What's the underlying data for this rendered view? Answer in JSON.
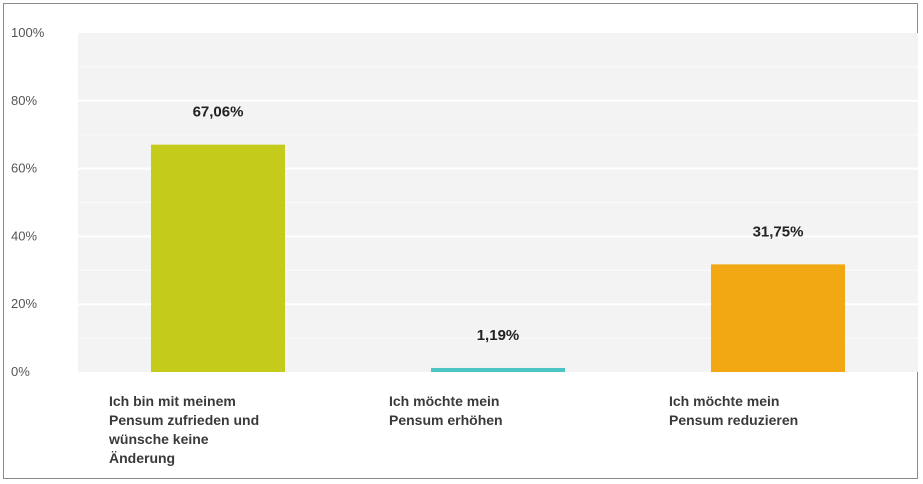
{
  "chart_data": {
    "type": "bar",
    "categories": [
      [
        "Ich bin mit meinem",
        "Pensum zufrieden und",
        "wünsche keine",
        "Änderung"
      ],
      [
        "Ich möchte mein",
        "Pensum erhöhen"
      ],
      [
        "Ich möchte mein",
        "Pensum reduzieren"
      ]
    ],
    "values": [
      67.06,
      1.19,
      31.75
    ],
    "data_labels": [
      "67,06%",
      "1,19%",
      "31,75%"
    ],
    "colors": [
      "#c5cb1b",
      "#4cc4c4",
      "#f2a813"
    ],
    "yticks": [
      "0%",
      "20%",
      "40%",
      "60%",
      "80%",
      "100%"
    ],
    "ylim": [
      0,
      100
    ],
    "grid": true,
    "legend": "none",
    "title": "",
    "xlabel": "",
    "ylabel": ""
  }
}
